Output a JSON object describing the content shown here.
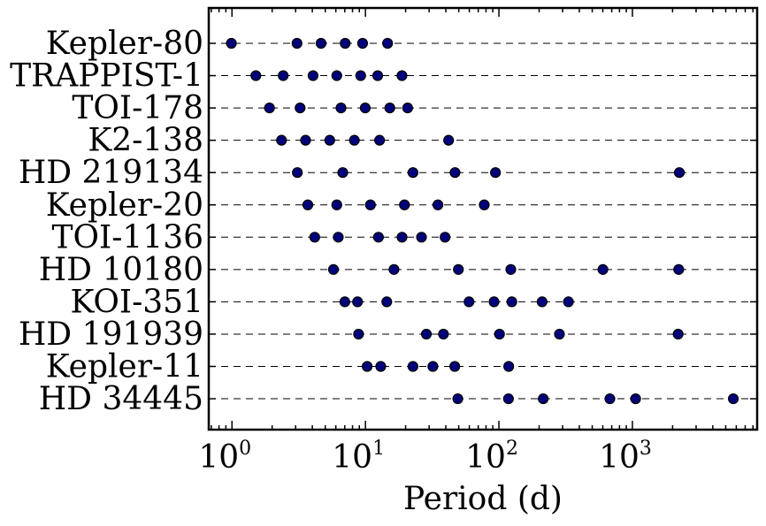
{
  "chart_data": {
    "type": "scatter",
    "xscale": "log",
    "xlabel": "Period (d)",
    "ylabel": "",
    "xlim": [
      0.67,
      8600
    ],
    "grid": "horizontal-dashed",
    "marker_color": "#00007a",
    "marker_edge_color": "#000000",
    "x_ticks": [
      {
        "base": "10",
        "exp": "0",
        "value": 1
      },
      {
        "base": "10",
        "exp": "1",
        "value": 10
      },
      {
        "base": "10",
        "exp": "2",
        "value": 100
      },
      {
        "base": "10",
        "exp": "3",
        "value": 1000
      }
    ],
    "categories": [
      "Kepler-80",
      "TRAPPIST-1",
      "TOI-178",
      "K2-138",
      "HD 219134",
      "Kepler-20",
      "TOI-1136",
      "HD 10180",
      "KOI-351",
      "HD 191939",
      "Kepler-11",
      "HD 34445"
    ],
    "series": [
      {
        "category": "Kepler-80",
        "periods": [
          0.99,
          3.07,
          4.65,
          7.05,
          9.52,
          14.65
        ]
      },
      {
        "category": "TRAPPIST-1",
        "periods": [
          1.51,
          2.42,
          4.05,
          6.1,
          9.21,
          12.35,
          18.77
        ]
      },
      {
        "category": "TOI-178",
        "periods": [
          1.91,
          3.24,
          6.56,
          9.96,
          15.23,
          20.71
        ]
      },
      {
        "category": "K2-138",
        "periods": [
          2.35,
          3.56,
          5.4,
          8.26,
          12.76,
          41.97
        ]
      },
      {
        "category": "HD 219134",
        "periods": [
          3.09,
          6.76,
          22.7,
          46.9,
          94.2,
          2247
        ]
      },
      {
        "category": "Kepler-20",
        "periods": [
          3.7,
          6.1,
          10.9,
          19.6,
          34.9,
          77.6
        ]
      },
      {
        "category": "TOI-1136",
        "periods": [
          4.17,
          6.26,
          12.52,
          18.8,
          26.3,
          39.5
        ]
      },
      {
        "category": "HD 10180",
        "periods": [
          5.76,
          16.36,
          49.7,
          122.7,
          601,
          2222
        ]
      },
      {
        "category": "KOI-351",
        "periods": [
          7.01,
          8.72,
          14.45,
          59.7,
          91.9,
          124.9,
          210.6,
          331.6
        ]
      },
      {
        "category": "HD 191939",
        "periods": [
          8.88,
          28.6,
          38.4,
          101,
          284,
          2200
        ]
      },
      {
        "category": "Kepler-11",
        "periods": [
          10.3,
          13.02,
          22.69,
          32.0,
          46.69,
          118.4
        ]
      },
      {
        "category": "HD 34445",
        "periods": [
          49.2,
          117.9,
          214.7,
          677.8,
          1057,
          5700
        ]
      }
    ]
  }
}
